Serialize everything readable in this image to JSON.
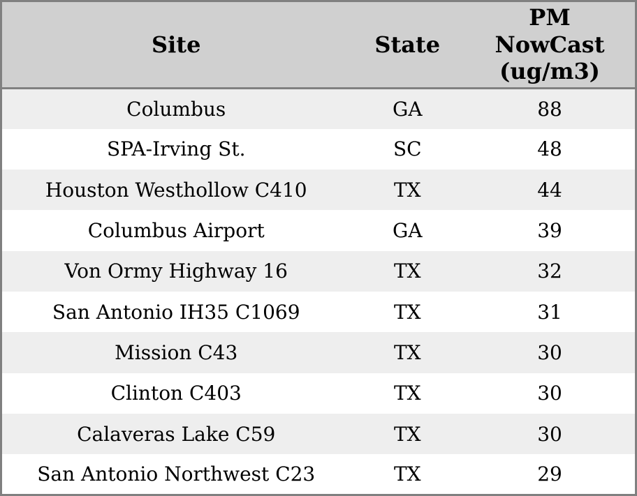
{
  "chart_data": {
    "type": "table",
    "columns": [
      "Site",
      "State",
      "PM NowCast (ug/m3)"
    ],
    "rows": [
      {
        "site": "Columbus",
        "state": "GA",
        "pm_nowcast": 88
      },
      {
        "site": "SPA-Irving St.",
        "state": "SC",
        "pm_nowcast": 48
      },
      {
        "site": "Houston Westhollow C410",
        "state": "TX",
        "pm_nowcast": 44
      },
      {
        "site": "Columbus Airport",
        "state": "GA",
        "pm_nowcast": 39
      },
      {
        "site": "Von Ormy Highway 16",
        "state": "TX",
        "pm_nowcast": 32
      },
      {
        "site": "San Antonio IH35 C1069",
        "state": "TX",
        "pm_nowcast": 31
      },
      {
        "site": "Mission C43",
        "state": "TX",
        "pm_nowcast": 30
      },
      {
        "site": "Clinton C403",
        "state": "TX",
        "pm_nowcast": 30
      },
      {
        "site": "Calaveras Lake C59",
        "state": "TX",
        "pm_nowcast": 30
      },
      {
        "site": "San Antonio Northwest C23",
        "state": "TX",
        "pm_nowcast": 29
      }
    ]
  },
  "colors": {
    "header_bg": "#d0d0d0",
    "row_stripe": "#eeeeee",
    "row_plain": "#ffffff",
    "border": "#808080",
    "text": "#000000"
  }
}
